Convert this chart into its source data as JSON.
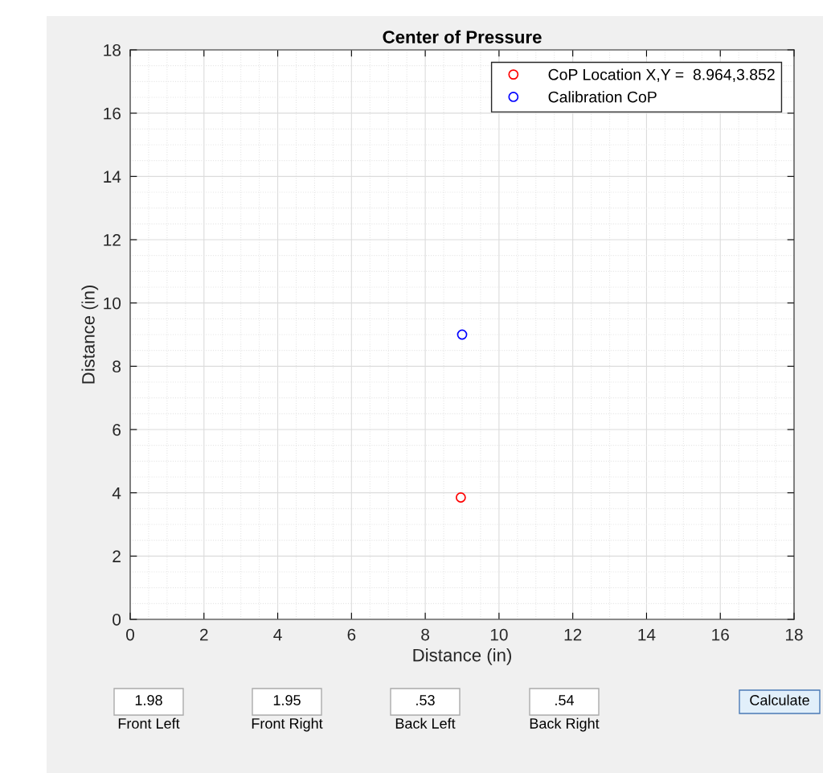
{
  "chart_data": {
    "type": "scatter",
    "title": "Center of Pressure",
    "xlabel": "Distance (in)",
    "ylabel": "Distance (in)",
    "series": [
      {
        "name": "CoP Location X,Y =  8.964,3.852",
        "color": "#ff0000",
        "x": [
          8.964
        ],
        "values": [
          3.852
        ]
      },
      {
        "name": "Calibration CoP",
        "color": "#0000ff",
        "x": [
          9
        ],
        "values": [
          9
        ]
      }
    ],
    "xlim": [
      0,
      18
    ],
    "ylim": [
      0,
      18
    ],
    "xticks": [
      0,
      2,
      4,
      6,
      8,
      10,
      12,
      14,
      16,
      18
    ],
    "yticks": [
      0,
      2,
      4,
      6,
      8,
      10,
      12,
      14,
      16,
      18
    ],
    "grid": true,
    "legend": "top right",
    "marker": "circle",
    "annotations": [
      "1.98",
      "Front Left",
      "1.95",
      "Front Right",
      ".53",
      "Back Left",
      ".54",
      "Back Right",
      "Calculate"
    ]
  }
}
